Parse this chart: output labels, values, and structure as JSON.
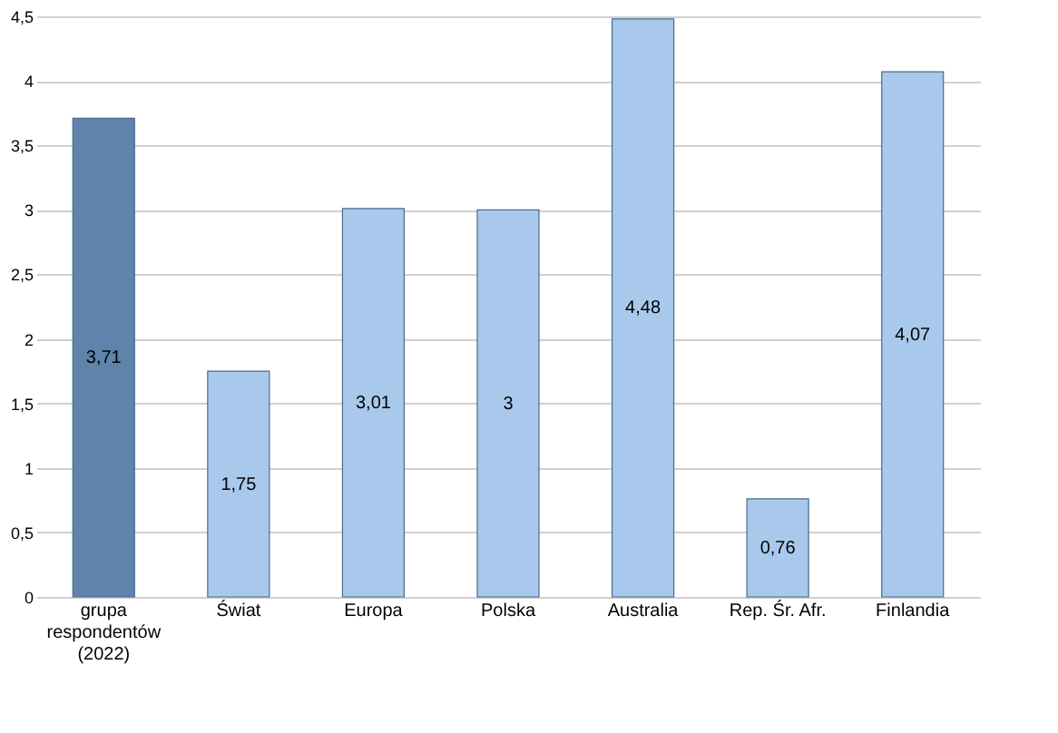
{
  "chart_data": {
    "type": "bar",
    "categories": [
      "grupa respondentów (2022)",
      "Świat",
      "Europa",
      "Polska",
      "Australia",
      "Rep. Śr. Afr.",
      "Finlandia"
    ],
    "values": [
      3.71,
      1.75,
      3.01,
      3,
      4.48,
      0.76,
      4.07
    ],
    "value_labels": [
      "3,71",
      "1,75",
      "3,01",
      "3",
      "4,48",
      "0,76",
      "4,07"
    ],
    "colors": [
      "#5f84ab",
      "#a9c9ec",
      "#a9c9ec",
      "#a9c9ec",
      "#a9c9ec",
      "#a9c9ec",
      "#a9c9ec"
    ],
    "ylim": [
      0,
      4.5
    ],
    "yticks": [
      0,
      {
        "value": 0.5,
        "label": "0,5"
      },
      1,
      {
        "value": 1.5,
        "label": "1,5"
      },
      2,
      {
        "value": 2.5,
        "label": "2,5"
      },
      3,
      {
        "value": 3.5,
        "label": "3,5"
      },
      4,
      {
        "value": 4.5,
        "label": "4,5"
      }
    ],
    "grid": "y"
  }
}
